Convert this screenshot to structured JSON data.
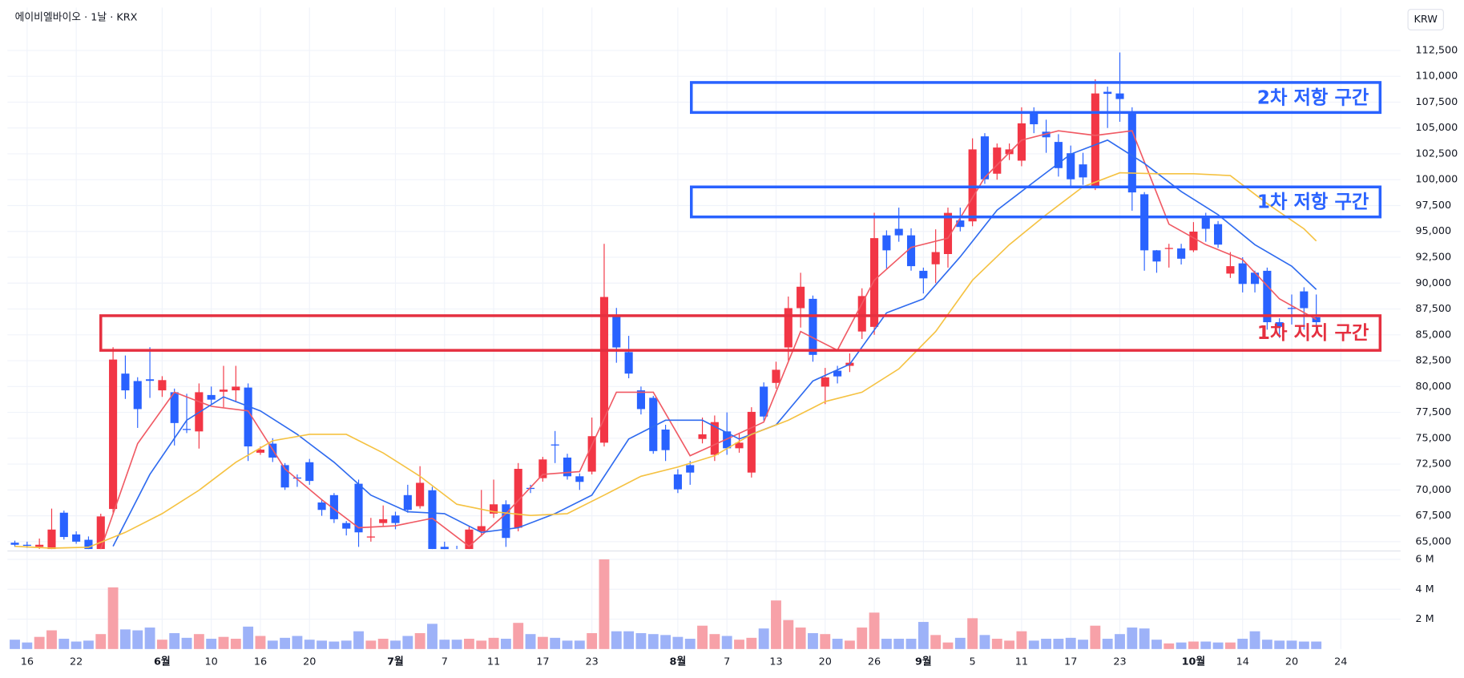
{
  "chart_data": {
    "type": "candlestick",
    "title": "에이비엘바이오 · 1날 · KRX",
    "currency": "KRW",
    "xlim": [
      -0.6,
      112.1
    ],
    "xticks": [
      {
        "value": 1,
        "label": "16"
      },
      {
        "value": 5,
        "label": "22"
      },
      {
        "value": 12,
        "label": "6월"
      },
      {
        "value": 16,
        "label": "10"
      },
      {
        "value": 20,
        "label": "16"
      },
      {
        "value": 24,
        "label": "20"
      },
      {
        "value": 31,
        "label": "7월"
      },
      {
        "value": 35,
        "label": "7"
      },
      {
        "value": 39,
        "label": "11"
      },
      {
        "value": 43,
        "label": "17"
      },
      {
        "value": 47,
        "label": "23"
      },
      {
        "value": 54,
        "label": "8월"
      },
      {
        "value": 58,
        "label": "7"
      },
      {
        "value": 62,
        "label": "13"
      },
      {
        "value": 66,
        "label": "20"
      },
      {
        "value": 70,
        "label": "26"
      },
      {
        "value": 74,
        "label": "9월"
      },
      {
        "value": 78,
        "label": "5"
      },
      {
        "value": 82,
        "label": "11"
      },
      {
        "value": 86,
        "label": "17"
      },
      {
        "value": 90,
        "label": "23"
      },
      {
        "value": 96,
        "label": "10월"
      },
      {
        "value": 100,
        "label": "14"
      },
      {
        "value": 104,
        "label": "20"
      },
      {
        "value": 108,
        "label": "24"
      }
    ],
    "ylim": [
      64280,
      116650
    ],
    "yticks": [
      {
        "value": 65000,
        "label": "65,000"
      },
      {
        "value": 67500,
        "label": "67,500"
      },
      {
        "value": 70000,
        "label": "70,000"
      },
      {
        "value": 72500,
        "label": "72,500"
      },
      {
        "value": 75000,
        "label": "75,000"
      },
      {
        "value": 77500,
        "label": "77,500"
      },
      {
        "value": 80000,
        "label": "80,000"
      },
      {
        "value": 82500,
        "label": "82,500"
      },
      {
        "value": 85000,
        "label": "85,000"
      },
      {
        "value": 87500,
        "label": "87,500"
      },
      {
        "value": 90000,
        "label": "90,000"
      },
      {
        "value": 92500,
        "label": "92,500"
      },
      {
        "value": 95000,
        "label": "95,000"
      },
      {
        "value": 97500,
        "label": "97,500"
      },
      {
        "value": 100000,
        "label": "100,000"
      },
      {
        "value": 102500,
        "label": "102,500"
      },
      {
        "value": 105000,
        "label": "105,000"
      },
      {
        "value": 107500,
        "label": "107,500"
      },
      {
        "value": 110000,
        "label": "110,000"
      },
      {
        "value": 112500,
        "label": "112,500"
      }
    ],
    "y2lim": [
      0,
      6437500
    ],
    "y2ticks": [
      {
        "value": 2000000,
        "label": "2 M"
      },
      {
        "value": 4000000,
        "label": "4 M"
      },
      {
        "value": 6000000,
        "label": "6 M"
      }
    ],
    "grid": true,
    "up_color": "#f23645",
    "down_color": "#2962ff",
    "open": [
      64900,
      64700,
      64500,
      64280,
      67800,
      65700,
      65180,
      64280,
      68160,
      81250,
      80530,
      80700,
      79630,
      79450,
      75900,
      75660,
      79180,
      79500,
      79630,
      79900,
      73600,
      74480,
      72400,
      71200,
      72680,
      68790,
      69500,
      66800,
      70600,
      65400,
      66800,
      67530,
      69500,
      68430,
      69970,
      64500,
      64000,
      64280,
      66000,
      67710,
      68610,
      66350,
      70200,
      71140,
      74400,
      73130,
      71320,
      71770,
      74570,
      86940,
      83330,
      79630,
      78910,
      75840,
      71500,
      72400,
      74930,
      73400,
      75660,
      74030,
      71680,
      79990,
      80350,
      83780,
      87580,
      88480,
      79990,
      81530,
      82000,
      85320,
      85770,
      94620,
      95250,
      94620,
      91190,
      91820,
      92810,
      96060,
      95970,
      104190,
      100580,
      102470,
      101840,
      106540,
      104640,
      103650,
      102560,
      101480,
      99310,
      108500,
      108340,
      106540,
      98590,
      93170,
      93300,
      93350,
      93170,
      96420,
      95700,
      90920,
      91910,
      91010,
      91190,
      86220,
      87600,
      89200,
      86700
    ],
    "high": [
      65100,
      65000,
      65300,
      68200,
      68000,
      66000,
      65500,
      67700,
      83800,
      83000,
      80900,
      83800,
      81000,
      79800,
      79300,
      80300,
      80000,
      82000,
      82000,
      80300,
      74200,
      75000,
      72600,
      71500,
      73000,
      69100,
      69700,
      67000,
      71000,
      67300,
      68500,
      67900,
      70500,
      72300,
      70300,
      65000,
      64600,
      66500,
      70000,
      71000,
      69000,
      72600,
      70500,
      73200,
      75700,
      73500,
      71600,
      77000,
      93800,
      87600,
      84900,
      80000,
      79100,
      76300,
      72000,
      72800,
      77000,
      77200,
      77500,
      75500,
      78000,
      80400,
      82400,
      88700,
      91000,
      88800,
      81800,
      82000,
      83200,
      89500,
      96800,
      95100,
      97300,
      95300,
      91500,
      95200,
      97300,
      97300,
      104000,
      104500,
      103500,
      103500,
      107000,
      107000,
      105800,
      104400,
      103300,
      102600,
      109700,
      109000,
      112300,
      107000,
      98800,
      93200,
      93800,
      93800,
      95900,
      96800,
      96000,
      93000,
      92500,
      91200,
      91500,
      86600,
      88900,
      89600,
      88900
    ],
    "low": [
      64500,
      64400,
      64300,
      64000,
      65200,
      64800,
      64000,
      64000,
      67800,
      78800,
      76000,
      78900,
      79000,
      74300,
      75500,
      74000,
      78200,
      78000,
      78500,
      72800,
      73400,
      72700,
      70000,
      70300,
      70500,
      67500,
      66800,
      65600,
      64500,
      65000,
      66500,
      66200,
      67800,
      68200,
      63800,
      63500,
      63200,
      64000,
      65500,
      67300,
      64500,
      66000,
      69700,
      70800,
      72600,
      71000,
      70000,
      71500,
      74200,
      82300,
      80800,
      77300,
      73500,
      72800,
      69700,
      70500,
      74500,
      72800,
      73400,
      73600,
      71200,
      76700,
      79800,
      82500,
      85700,
      82400,
      78300,
      80300,
      81400,
      84600,
      85000,
      91400,
      94000,
      91200,
      89000,
      90000,
      91500,
      95000,
      95500,
      99600,
      100000,
      101900,
      101300,
      104500,
      102600,
      100300,
      99400,
      99500,
      99000,
      105000,
      105600,
      97000,
      91200,
      91000,
      91500,
      91800,
      93000,
      94000,
      93400,
      90500,
      89100,
      89100,
      85500,
      84700,
      86000,
      85500,
      85500
    ],
    "close": [
      64700,
      64600,
      64700,
      66170,
      65450,
      65000,
      64280,
      67440,
      82610,
      79630,
      77820,
      80550,
      80620,
      76470,
      75800,
      79450,
      78730,
      79700,
      79990,
      74210,
      73900,
      73130,
      70240,
      71100,
      70870,
      68070,
      67170,
      66260,
      65900,
      65500,
      67170,
      66800,
      68070,
      70690,
      64280,
      63800,
      63500,
      66170,
      66500,
      68610,
      65360,
      72040,
      70100,
      72950,
      74300,
      71320,
      70780,
      75200,
      88660,
      83780,
      81250,
      77820,
      73760,
      73850,
      70060,
      71680,
      75380,
      76560,
      74030,
      74570,
      77550,
      77100,
      81620,
      87580,
      89650,
      83060,
      80890,
      80980,
      82300,
      88750,
      94350,
      93170,
      94620,
      91640,
      90460,
      93000,
      96790,
      95430,
      102930,
      100040,
      103110,
      102930,
      105450,
      105360,
      104100,
      101120,
      100040,
      100220,
      108340,
      108300,
      107800,
      98770,
      93170,
      92090,
      93400,
      92360,
      94980,
      95250,
      93720,
      91640,
      89920,
      89920,
      86220,
      85770,
      87500,
      87580,
      86220
    ],
    "volume": {
      "axis": "y2",
      "up_color": "#f7a1a8",
      "down_color": "#9db2f8",
      "values": [
        625000,
        437500,
        812500,
        1250000,
        687500,
        500000,
        562500,
        1000000,
        4125000,
        1312500,
        1250000,
        1437500,
        625000,
        1062500,
        750000,
        1000000,
        687500,
        812500,
        687500,
        1500000,
        875000,
        562500,
        750000,
        875000,
        625000,
        562500,
        500000,
        562500,
        1187500,
        562500,
        687500,
        562500,
        875000,
        1062500,
        1687500,
        625000,
        625000,
        687500,
        562500,
        750000,
        687500,
        1750000,
        1000000,
        812500,
        750000,
        562500,
        562500,
        1062500,
        6000000,
        1187500,
        1187500,
        1062500,
        1000000,
        937500,
        812500,
        687500,
        1562500,
        1000000,
        875000,
        625000,
        750000,
        1375000,
        3250000,
        1937500,
        1437500,
        1062500,
        1000000,
        687500,
        562500,
        1437500,
        2437500,
        687500,
        687500,
        687500,
        1812500,
        937500,
        437500,
        750000,
        2062500,
        937500,
        687500,
        562500,
        1187500,
        562500,
        687500,
        687500,
        750000,
        625000,
        1562500,
        687500,
        1000000,
        1437500,
        1375000,
        625000,
        375000,
        437500,
        500000,
        500000,
        437500,
        437500,
        687500,
        1187500,
        625000,
        562500,
        562500,
        500000,
        500000
      ]
    },
    "series": [
      {
        "color": "#f05a64",
        "x": [
          7,
          10,
          13,
          16,
          19,
          22,
          25,
          28,
          31,
          34,
          37,
          40,
          43,
          46,
          49,
          52,
          55,
          58,
          61,
          64,
          67,
          70,
          73,
          76,
          79,
          82,
          85,
          88,
          91,
          94,
          97,
          100,
          103,
          106
        ],
        "values": [
          64280,
          74480,
          79450,
          78090,
          77640,
          72040,
          69060,
          66350,
          66540,
          67260,
          64550,
          67710,
          71500,
          71770,
          79450,
          79450,
          73310,
          74930,
          76560,
          85320,
          83510,
          90280,
          93450,
          94350,
          100220,
          103830,
          104730,
          104280,
          104730,
          95700,
          93720,
          92270,
          88480,
          86490
        ]
      },
      {
        "color": "#2f6bef",
        "x": [
          8,
          11,
          14,
          17,
          20,
          23,
          26,
          29,
          32,
          35,
          38,
          41,
          44,
          47,
          50,
          53,
          56,
          59,
          62,
          65,
          68,
          71,
          74,
          77,
          80,
          83,
          86,
          89,
          92,
          95,
          98,
          101,
          104,
          106
        ],
        "values": [
          64550,
          71500,
          76740,
          79000,
          77640,
          75380,
          72680,
          69500,
          67890,
          67710,
          65900,
          66350,
          67710,
          69500,
          74930,
          76740,
          76740,
          74930,
          76290,
          80530,
          82160,
          87120,
          88480,
          92540,
          97060,
          99770,
          102470,
          103830,
          101570,
          98860,
          96610,
          93720,
          91640,
          89380
        ]
      },
      {
        "color": "#f5c242",
        "x": [
          0,
          3,
          6,
          9,
          12,
          15,
          18,
          21,
          24,
          27,
          30,
          33,
          36,
          39,
          42,
          45,
          48,
          51,
          54,
          57,
          60,
          63,
          66,
          69,
          72,
          75,
          78,
          81,
          84,
          87,
          90,
          93,
          96,
          99,
          102,
          105,
          106
        ],
        "values": [
          64550,
          64370,
          64460,
          65900,
          67710,
          69970,
          72680,
          74750,
          75380,
          75380,
          73580,
          71320,
          68610,
          67890,
          67530,
          67710,
          69500,
          71320,
          72220,
          73310,
          75380,
          76740,
          78550,
          79450,
          81710,
          85320,
          90280,
          93720,
          96610,
          99310,
          100670,
          100580,
          100580,
          100400,
          97690,
          95250,
          94080
        ]
      }
    ],
    "annotations": [
      {
        "label": "2차 저항 구간",
        "color": "#2962ff",
        "x": [
          55.1,
          111.2
        ],
        "y": [
          106500,
          109400
        ]
      },
      {
        "label": "1차 저항 구간",
        "color": "#2962ff",
        "x": [
          55.1,
          111.2
        ],
        "y": [
          96400,
          99300
        ]
      },
      {
        "label": "1차 지지 구간",
        "color": "#e53040",
        "x": [
          7,
          111.2
        ],
        "y": [
          83500,
          86850
        ]
      }
    ]
  }
}
